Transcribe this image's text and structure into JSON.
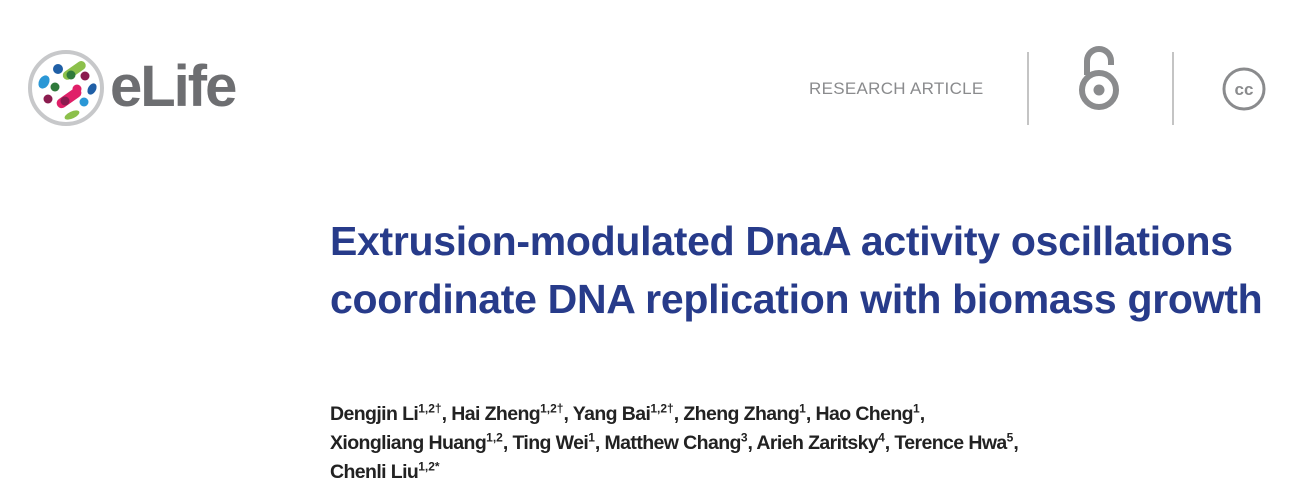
{
  "header": {
    "logo_text": "eLife",
    "article_type": "RESEARCH ARTICLE",
    "icons": [
      "open-access-icon",
      "creative-commons-icon"
    ],
    "cc_label": "cc"
  },
  "title": "Extrusion-modulated DnaA activity oscillations coordinate DNA replication with biomass growth",
  "authors": [
    {
      "name": "Dengjin Li",
      "aff": "1,2†",
      "sep": ", "
    },
    {
      "name": "Hai Zheng",
      "aff": "1,2†",
      "sep": ", "
    },
    {
      "name": "Yang Bai",
      "aff": "1,2†",
      "sep": ", "
    },
    {
      "name": "Zheng Zhang",
      "aff": "1",
      "sep": ", "
    },
    {
      "name": "Hao Cheng",
      "aff": "1",
      "sep": ", "
    },
    {
      "name": "Xiongliang Huang",
      "aff": "1,2",
      "sep": ", "
    },
    {
      "name": "Ting Wei",
      "aff": "1",
      "sep": ", "
    },
    {
      "name": "Matthew Chang",
      "aff": "3",
      "sep": ", "
    },
    {
      "name": "Arieh Zaritsky",
      "aff": "4",
      "sep": ", "
    },
    {
      "name": "Terence Hwa",
      "aff": "5",
      "sep": ", "
    },
    {
      "name": "Chenli Liu",
      "aff": "1,2*",
      "sep": ""
    }
  ],
  "colors": {
    "title": "#273b8a",
    "logo_gray": "#6d6e71"
  }
}
